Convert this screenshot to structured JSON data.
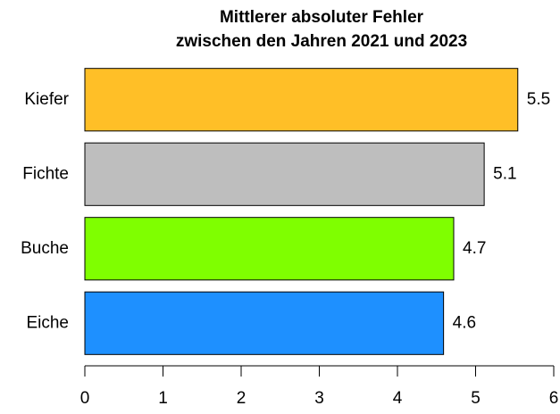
{
  "chart_data": {
    "type": "barh",
    "title": [
      "Mittlerer absoluter Fehler",
      "zwischen den Jahren 2021 und 2023"
    ],
    "categories": [
      "Kiefer",
      "Fichte",
      "Buche",
      "Eiche"
    ],
    "values": [
      5.54,
      5.11,
      4.72,
      4.59
    ],
    "value_labels": [
      "5.5",
      "5.1",
      "4.7",
      "4.6"
    ],
    "colors": [
      "#ffbf27",
      "#bebebe",
      "#7fff00",
      "#1e90ff"
    ],
    "xlim": [
      0,
      6
    ],
    "xticks": [
      0,
      1,
      2,
      3,
      4,
      5,
      6
    ]
  }
}
